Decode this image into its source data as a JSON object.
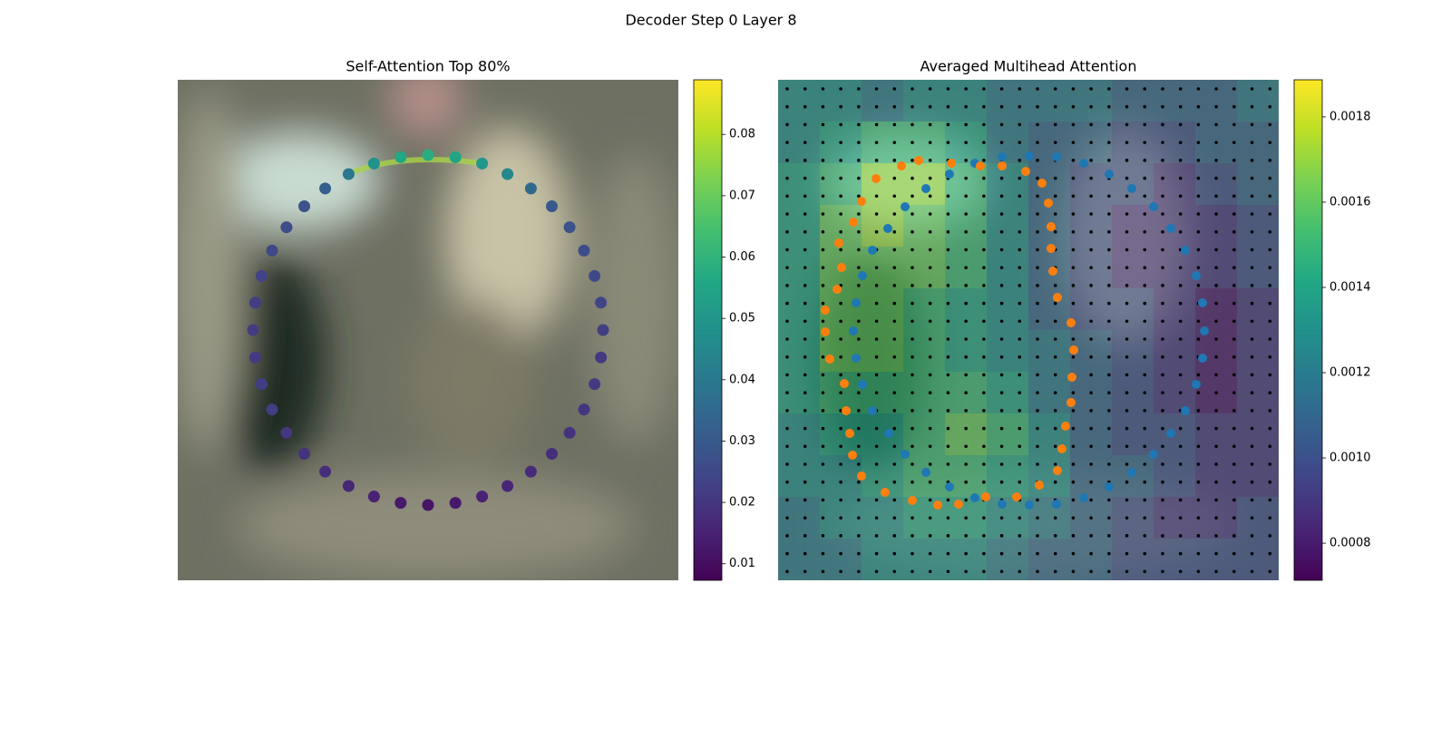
{
  "title": "Decoder Step 0 Layer 8",
  "chart_data": [
    {
      "type": "scatter",
      "title": "Self-Attention Top 80%",
      "colormap": "viridis",
      "xlim": [
        0,
        552
      ],
      "ylim": [
        552,
        0
      ],
      "x": [
        276,
        306.2,
        335.6,
        363.6,
        389.4,
        412.5,
        432.1,
        448,
        459.6,
        466.6,
        469,
        466.6,
        459.6,
        448,
        432.1,
        412.5,
        389.4,
        363.6,
        335.6,
        306.2,
        276,
        245.8,
        216.4,
        188.4,
        162.6,
        139.5,
        119.9,
        104,
        92.4,
        85.4,
        83,
        85.4,
        92.4,
        104,
        119.9,
        139.5,
        162.6,
        188.4,
        216.4,
        245.8
      ],
      "y": [
        83,
        85.4,
        92.4,
        104,
        119.9,
        139.5,
        162.6,
        188.4,
        216.4,
        245.8,
        276,
        306.2,
        335.6,
        363.6,
        389.4,
        412.5,
        432.1,
        448,
        459.6,
        466.6,
        469,
        466.6,
        459.6,
        448,
        432.1,
        412.5,
        389.4,
        363.6,
        335.6,
        306.2,
        276,
        245.8,
        216.4,
        188.4,
        162.6,
        139.5,
        119.9,
        104,
        92.4,
        85.4
      ],
      "values": [
        0.058,
        0.055,
        0.05,
        0.045,
        0.035,
        0.03,
        0.028,
        0.026,
        0.025,
        0.024,
        0.022,
        0.021,
        0.021,
        0.02,
        0.019,
        0.018,
        0.017,
        0.016,
        0.015,
        0.013,
        0.012,
        0.013,
        0.015,
        0.016,
        0.018,
        0.019,
        0.02,
        0.022,
        0.022,
        0.021,
        0.021,
        0.022,
        0.023,
        0.025,
        0.026,
        0.028,
        0.032,
        0.04,
        0.048,
        0.056
      ],
      "clim": [
        0.0073,
        0.0889
      ],
      "cticks": [
        0.01,
        0.02,
        0.03,
        0.04,
        0.05,
        0.06,
        0.07,
        0.08
      ]
    },
    {
      "type": "heatmap",
      "title": "Averaged Multihead Attention",
      "colormap": "viridis",
      "xlim": [
        0,
        552
      ],
      "ylim": [
        552,
        0
      ],
      "z": [
        [
          0.0013,
          0.0013,
          0.0012,
          0.0013,
          0.0013,
          0.0012,
          0.0012,
          0.0012,
          0.0011,
          0.0011,
          0.0011,
          0.0012
        ],
        [
          0.0013,
          0.0014,
          0.0015,
          0.0015,
          0.0014,
          0.0012,
          0.0011,
          0.0011,
          0.001,
          0.001,
          0.0011,
          0.0011
        ],
        [
          0.0014,
          0.0015,
          0.0017,
          0.0017,
          0.0015,
          0.0013,
          0.0011,
          0.001,
          0.001,
          0.0009,
          0.001,
          0.0011
        ],
        [
          0.0014,
          0.0016,
          0.0017,
          0.0016,
          0.0015,
          0.0013,
          0.0011,
          0.001,
          0.0009,
          0.0009,
          0.0009,
          0.001
        ],
        [
          0.0014,
          0.0016,
          0.0016,
          0.0016,
          0.0015,
          0.0013,
          0.0011,
          0.001,
          0.0009,
          0.0009,
          0.0009,
          0.001
        ],
        [
          0.0014,
          0.0016,
          0.0016,
          0.0015,
          0.0014,
          0.0013,
          0.0011,
          0.001,
          0.001,
          0.0009,
          0.0008,
          0.0009
        ],
        [
          0.0014,
          0.0016,
          0.0016,
          0.0015,
          0.0014,
          0.0013,
          0.0012,
          0.0011,
          0.001,
          0.0009,
          0.0008,
          0.0009
        ],
        [
          0.0014,
          0.0015,
          0.0015,
          0.0015,
          0.0015,
          0.0014,
          0.0012,
          0.0011,
          0.001,
          0.0009,
          0.0008,
          0.0009
        ],
        [
          0.0013,
          0.0014,
          0.0014,
          0.0015,
          0.0016,
          0.0015,
          0.0013,
          0.0011,
          0.001,
          0.001,
          0.0009,
          0.0009
        ],
        [
          0.0013,
          0.0013,
          0.0014,
          0.0015,
          0.0015,
          0.0014,
          0.0013,
          0.0011,
          0.0011,
          0.001,
          0.0009,
          0.0009
        ],
        [
          0.0012,
          0.0013,
          0.0013,
          0.0014,
          0.0014,
          0.0013,
          0.0012,
          0.0011,
          0.001,
          0.0009,
          0.0009,
          0.001
        ],
        [
          0.0012,
          0.0012,
          0.0013,
          0.0013,
          0.0013,
          0.0012,
          0.0011,
          0.0011,
          0.001,
          0.001,
          0.001,
          0.001
        ]
      ],
      "clim": [
        0.000713,
        0.001887
      ],
      "cticks": [
        0.0008,
        {
          "value": 0.001,
          "label": "0.0010"
        },
        0.0012,
        0.0014,
        0.0016,
        0.0018
      ],
      "series": [
        {
          "color": "#1f77b4",
          "x": [
            247,
            277,
            307,
            337,
            365,
            390,
            414,
            433,
            449,
            461,
            468,
            470,
            468,
            461,
            449,
            433,
            414,
            390,
            365,
            337,
            307,
            277,
            247,
            217,
            189,
            163,
            140,
            122,
            104,
            93,
            86,
            83,
            86,
            93,
            104,
            121,
            140,
            163,
            189,
            217
          ],
          "y": [
            85,
            84,
            85,
            92,
            104,
            120,
            140,
            164,
            188,
            216,
            246,
            277,
            307,
            336,
            365,
            390,
            413,
            433,
            449,
            461,
            468,
            469,
            468,
            461,
            449,
            433,
            413,
            390,
            365,
            336,
            307,
            277,
            246,
            216,
            188,
            164,
            140,
            120,
            104,
            92
          ]
        },
        {
          "color": "#ff7f0e",
          "x": [
            155,
            191,
            223,
            247,
            273,
            291,
            298,
            301,
            301,
            303,
            308,
            323,
            326,
            324,
            323,
            317,
            313,
            308,
            288,
            263,
            229,
            199,
            176,
            148,
            118,
            92,
            82,
            79,
            75,
            73,
            57,
            52,
            52,
            65,
            70,
            67,
            83,
            92,
            108,
            136
          ],
          "y": [
            89,
            92,
            95,
            95,
            101,
            114,
            136,
            162,
            186,
            211,
            240,
            268,
            298,
            328,
            356,
            382,
            407,
            431,
            447,
            460,
            460,
            468,
            469,
            464,
            455,
            437,
            414,
            390,
            365,
            335,
            308,
            278,
            254,
            231,
            207,
            180,
            157,
            134,
            109,
            95
          ]
        }
      ]
    }
  ]
}
